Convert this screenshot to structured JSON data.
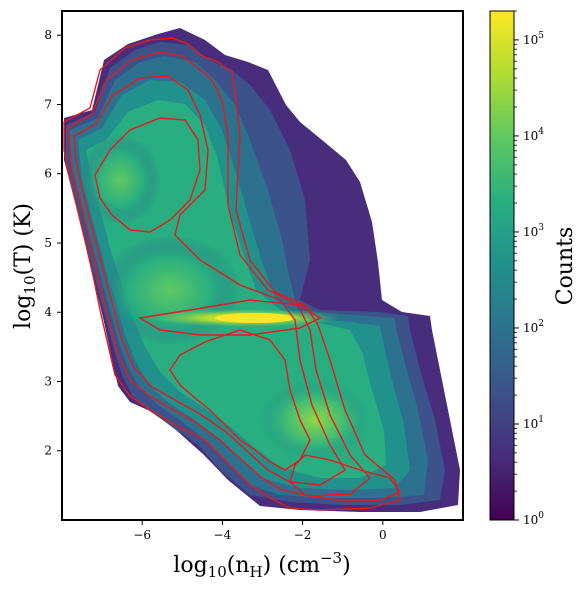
{
  "chart_data": {
    "type": "heatmap",
    "title": "",
    "xlabel": "log10(nH) (cm^-3)",
    "ylabel": "log10(T) (K)",
    "xlim": [
      -8.0,
      2.0
    ],
    "ylim": [
      1.0,
      8.35
    ],
    "x_ticks": [
      -6,
      -4,
      -2,
      0
    ],
    "y_ticks": [
      2,
      3,
      4,
      5,
      6,
      7,
      8
    ],
    "colorbar": {
      "label": "Counts",
      "scale": "log",
      "range": [
        1,
        200000
      ],
      "ticks": [
        1,
        10,
        100,
        1000,
        10000,
        100000
      ],
      "tick_exponents": [
        "0",
        "1",
        "2",
        "3",
        "4",
        "5"
      ],
      "colormap": "viridis"
    },
    "density_ridge": [
      {
        "x": -7.6,
        "y": 6.7,
        "count": 2000
      },
      {
        "x": -7.2,
        "y": 6.0,
        "count": 8000
      },
      {
        "x": -6.8,
        "y": 5.4,
        "count": 12000
      },
      {
        "x": -6.3,
        "y": 4.8,
        "count": 15000
      },
      {
        "x": -5.8,
        "y": 4.3,
        "count": 20000
      },
      {
        "x": -5.0,
        "y": 4.0,
        "count": 30000
      },
      {
        "x": -4.0,
        "y": 3.92,
        "count": 80000
      },
      {
        "x": -3.3,
        "y": 3.92,
        "count": 150000
      },
      {
        "x": -2.2,
        "y": 3.92,
        "count": 50000
      },
      {
        "x": -1.5,
        "y": 3.0,
        "count": 10000
      },
      {
        "x": -1.0,
        "y": 2.4,
        "count": 20000
      },
      {
        "x": -0.5,
        "y": 2.0,
        "count": 8000
      }
    ],
    "overlay": {
      "type": "contour",
      "color": "#e41a1c",
      "levels": 4
    }
  }
}
